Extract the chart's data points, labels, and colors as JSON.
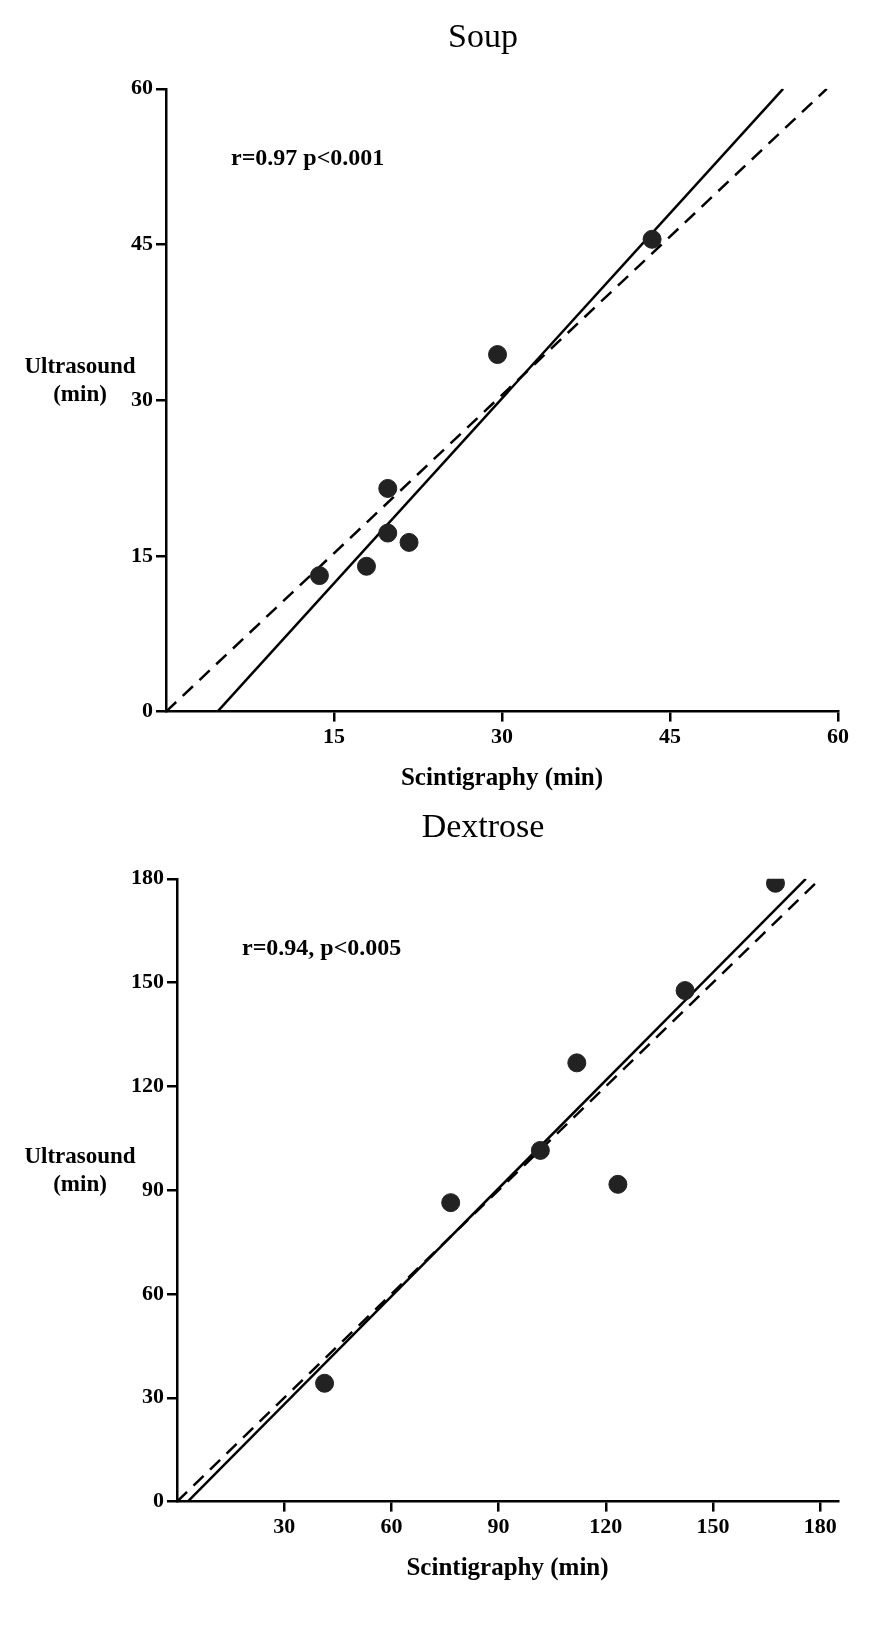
{
  "chart_data": [
    {
      "type": "scatter",
      "title": "Soup",
      "xlabel": "Scintigraphy (min)",
      "ylabel": "Ultrasound (min)",
      "annotations": [
        "r=0.97 p<0.001"
      ],
      "xlim": [
        0,
        60
      ],
      "ylim": [
        0,
        60
      ],
      "xticks": [
        15,
        30,
        45,
        60
      ],
      "yticks": [
        0,
        15,
        30,
        45,
        60
      ],
      "series": [
        {
          "type": "scatter",
          "color": "#222222",
          "marker": "circle",
          "x": [
            13.7,
            17.9,
            19.8,
            19.8,
            21.7,
            29.6,
            43.4
          ],
          "values": [
            13.1,
            14.0,
            17.2,
            21.5,
            16.3,
            34.4,
            45.5
          ]
        },
        {
          "type": "line",
          "color": "#000000",
          "line_style": "solid",
          "marker": "none",
          "x": [
            4.6,
            55.1
          ],
          "values": [
            0,
            60
          ]
        },
        {
          "type": "line",
          "color": "#000000",
          "line_style": "dashed",
          "marker": "none",
          "x": [
            0,
            59
          ],
          "values": [
            0,
            60
          ]
        }
      ]
    },
    {
      "type": "scatter",
      "title": "Dextrose",
      "xlabel": "Scintigraphy (min)",
      "ylabel": "Ultrasound (min)",
      "annotations": [
        "r=0.94, p<0.005"
      ],
      "xlim": [
        0,
        185
      ],
      "ylim": [
        0,
        180
      ],
      "xticks": [
        30,
        60,
        90,
        120,
        150,
        180
      ],
      "yticks": [
        0,
        30,
        60,
        90,
        120,
        150,
        180
      ],
      "series": [
        {
          "type": "scatter",
          "color": "#222222",
          "marker": "circle",
          "x": [
            41.3,
            76.6,
            101.7,
            111.9,
            123.4,
            142.2,
            167.5
          ],
          "values": [
            34.2,
            86.4,
            101.5,
            126.8,
            91.7,
            147.7,
            178.7
          ]
        },
        {
          "type": "line",
          "color": "#000000",
          "line_style": "solid",
          "marker": "none",
          "x": [
            3,
            176
          ],
          "values": [
            0,
            180
          ]
        },
        {
          "type": "line",
          "color": "#000000",
          "line_style": "dashed",
          "marker": "none",
          "x": [
            0,
            180
          ],
          "values": [
            0,
            180
          ]
        }
      ]
    }
  ]
}
